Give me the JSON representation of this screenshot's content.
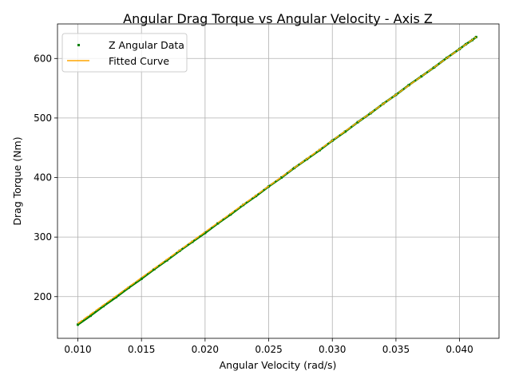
{
  "chart_data": {
    "type": "scatter",
    "title": "Angular Drag Torque vs Angular Velocity - Axis Z",
    "xlabel": "Angular Velocity (rad/s)",
    "ylabel": "Drag Torque (Nm)",
    "xlim": [
      0.0084,
      0.0431
    ],
    "ylim": [
      130,
      658
    ],
    "xticks": [
      0.01,
      0.015,
      0.02,
      0.025,
      0.03,
      0.035,
      0.04
    ],
    "xtick_labels": [
      "0.010",
      "0.015",
      "0.020",
      "0.025",
      "0.030",
      "0.035",
      "0.040"
    ],
    "yticks": [
      200,
      300,
      400,
      500,
      600
    ],
    "ytick_labels": [
      "200",
      "300",
      "400",
      "500",
      "600"
    ],
    "grid": true,
    "legend_position": "top-left",
    "series": [
      {
        "name": "Z Angular Data",
        "kind": "scatter",
        "color": "#008000",
        "x": [
          0.01,
          0.011,
          0.012,
          0.013,
          0.014,
          0.015,
          0.016,
          0.017,
          0.018,
          0.019,
          0.02,
          0.021,
          0.022,
          0.023,
          0.024,
          0.025,
          0.026,
          0.027,
          0.028,
          0.029,
          0.03,
          0.031,
          0.032,
          0.033,
          0.034,
          0.035,
          0.036,
          0.037,
          0.038,
          0.039,
          0.04,
          0.0405,
          0.041,
          0.0413
        ],
        "y": [
          153,
          168,
          184,
          199,
          215,
          230,
          246,
          261,
          277,
          292,
          307,
          323,
          338,
          354,
          369,
          385,
          400,
          416,
          431,
          446,
          462,
          477,
          493,
          508,
          524,
          539,
          555,
          570,
          585,
          601,
          616,
          624,
          631,
          636
        ]
      },
      {
        "name": "Fitted Curve",
        "kind": "line",
        "color": "#ffa500",
        "x": [
          0.01,
          0.0413
        ],
        "y": [
          155,
          636
        ]
      }
    ]
  }
}
